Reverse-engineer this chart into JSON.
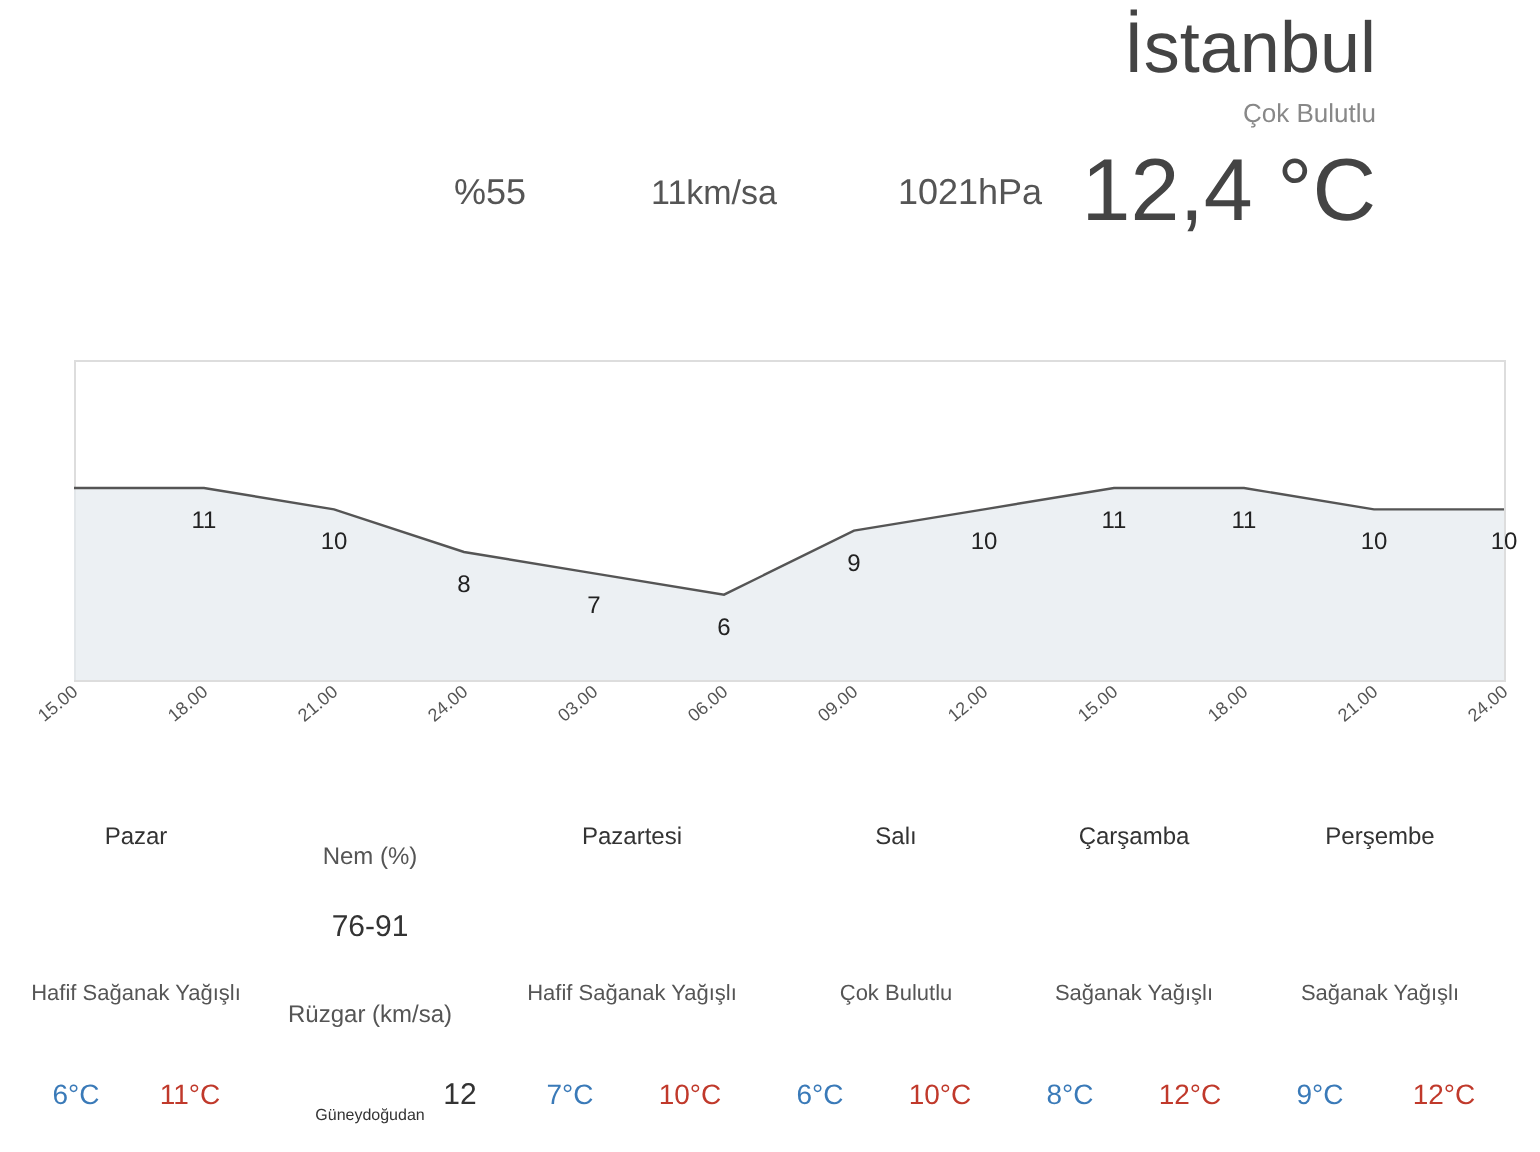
{
  "chart_data": {
    "type": "area",
    "title": "İstanbul",
    "subtitle": "Çok Bulutlu",
    "categories": [
      "15.00",
      "18.00",
      "21.00",
      "24.00",
      "03.00",
      "06.00",
      "09.00",
      "12.00",
      "15.00",
      "18.00",
      "21.00",
      "24.00"
    ],
    "values": [
      11,
      11,
      10,
      8,
      7,
      6,
      9,
      10,
      11,
      11,
      10,
      10
    ],
    "value_labels": [
      null,
      "11",
      "10",
      "8",
      "7",
      "6",
      "9",
      "10",
      "11",
      "11",
      "10",
      "10"
    ],
    "color": "#555555",
    "ylim": [
      2,
      17
    ],
    "tick_labels": "x",
    "grid": false,
    "annotations": [
      "%55",
      "11km/sa",
      "1021hPa",
      "12,4 °C",
      "Pazar",
      "Nem (%)",
      "76-91",
      "Hafif Sağanak Yağışlı",
      "Rüzgar (km/sa)",
      "Güneydoğudan",
      "12",
      "6°C",
      "11°C",
      "Pazartesi",
      "Hafif Sağanak Yağışlı",
      "7°C",
      "10°C",
      "Salı",
      "Çok Bulutlu",
      "6°C",
      "10°C",
      "Çarşamba",
      "Sağanak Yağışlı",
      "8°C",
      "12°C",
      "Perşembe",
      "Sağanak Yağışlı",
      "9°C",
      "12°C"
    ]
  }
}
